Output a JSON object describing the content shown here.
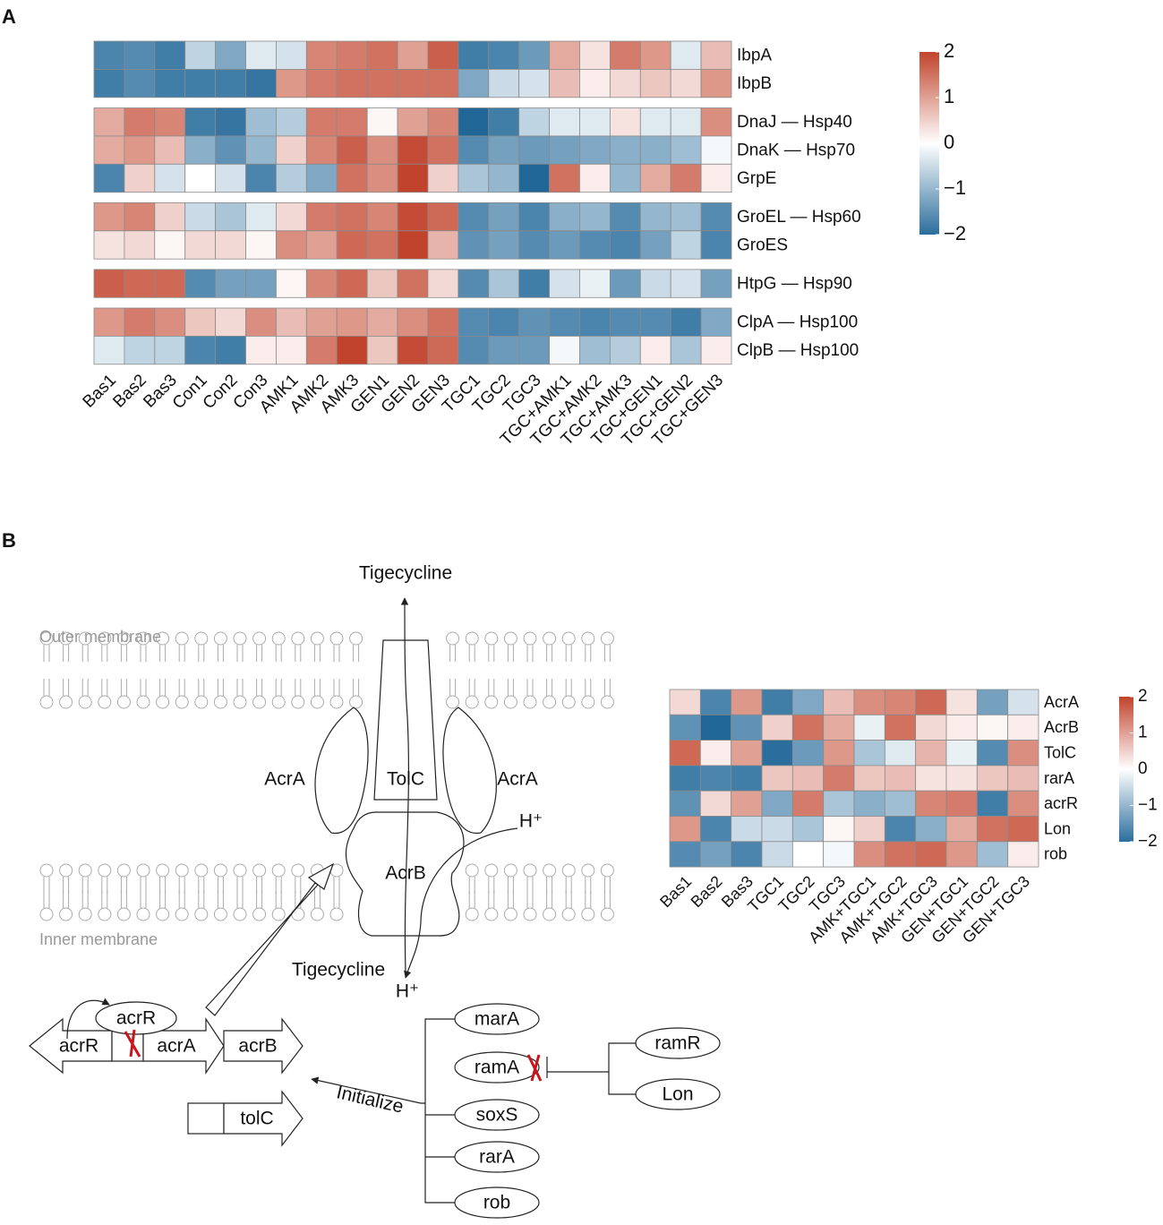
{
  "panel_labels": [
    "A",
    "B"
  ],
  "chart_data": [
    {
      "type": "heatmap",
      "columns": [
        "Bas1",
        "Bas2",
        "Bas3",
        "Con1",
        "Con2",
        "Con3",
        "AMK1",
        "AMK2",
        "AMK3",
        "GEN1",
        "GEN2",
        "GEN3",
        "TGC1",
        "TGC2",
        "TGC3",
        "TGC+AMK1",
        "TGC+AMK2",
        "TGC+AMK3",
        "TGC+GEN1",
        "TGC+GEN2",
        "TGC+GEN3"
      ],
      "row_groups": [
        {
          "rows": [
            "IbpA",
            "IbpB"
          ],
          "values": [
            [
              -1.7,
              -1.6,
              -1.8,
              -0.6,
              -1.2,
              -0.3,
              -0.4,
              1.3,
              1.4,
              1.5,
              1.0,
              1.7,
              -1.8,
              -1.7,
              -1.4,
              0.9,
              0.3,
              1.4,
              1.1,
              -0.3,
              0.7
            ],
            [
              -1.8,
              -1.6,
              -1.8,
              -1.8,
              -1.8,
              -1.9,
              1.1,
              1.4,
              1.5,
              1.5,
              1.5,
              1.5,
              -1.2,
              -0.5,
              -0.4,
              0.7,
              0.2,
              0.4,
              0.6,
              0.4,
              1.1
            ]
          ]
        },
        {
          "rows": [
            "DnaJ — Hsp40",
            "DnaK — Hsp70",
            "GrpE"
          ],
          "values": [
            [
              0.9,
              1.4,
              1.3,
              -1.8,
              -1.9,
              -0.9,
              -0.7,
              1.4,
              1.4,
              0.1,
              1.0,
              1.3,
              -2.1,
              -1.8,
              -0.6,
              -0.3,
              -0.3,
              0.3,
              -0.3,
              -0.3,
              1.2
            ],
            [
              0.9,
              1.1,
              0.7,
              -1.1,
              -1.5,
              -1.0,
              0.5,
              1.3,
              1.7,
              1.2,
              1.9,
              1.5,
              -1.6,
              -1.3,
              -1.4,
              -1.3,
              -1.2,
              -1.1,
              -1.1,
              -0.9,
              -0.1
            ],
            [
              -1.7,
              0.5,
              -0.4,
              0.0,
              -0.4,
              -1.7,
              -0.7,
              -1.2,
              1.5,
              1.2,
              2.0,
              0.5,
              -0.8,
              -1.0,
              -2.1,
              1.5,
              0.2,
              -1.0,
              0.9,
              1.4,
              0.2
            ]
          ]
        },
        {
          "rows": [
            "GroEL — Hsp60",
            "GroES"
          ],
          "values": [
            [
              1.1,
              1.3,
              0.5,
              -0.5,
              -0.8,
              -0.3,
              0.4,
              1.4,
              1.5,
              1.3,
              1.9,
              1.6,
              -1.6,
              -1.3,
              -1.7,
              -1.1,
              -1.0,
              -1.6,
              -1.0,
              -0.9,
              -1.6
            ],
            [
              0.3,
              0.4,
              0.1,
              0.4,
              0.4,
              0.1,
              1.2,
              1.0,
              1.6,
              1.5,
              2.0,
              0.8,
              -1.5,
              -1.3,
              -1.6,
              -1.4,
              -1.6,
              -1.7,
              -1.3,
              -0.6,
              -1.7
            ]
          ]
        },
        {
          "rows": [
            "HtpG — Hsp90"
          ],
          "values": [
            [
              1.7,
              1.6,
              1.6,
              -1.6,
              -1.3,
              -1.3,
              0.1,
              1.3,
              1.6,
              0.6,
              1.5,
              0.4,
              -1.6,
              -0.8,
              -1.8,
              -0.4,
              -0.2,
              -1.4,
              -0.5,
              -0.4,
              -1.3
            ]
          ]
        },
        {
          "rows": [
            "ClpA — Hsp100",
            "ClpB — Hsp100"
          ],
          "values": [
            [
              1.1,
              1.4,
              1.2,
              0.6,
              0.4,
              1.2,
              0.7,
              1.0,
              1.1,
              0.9,
              1.2,
              1.5,
              -1.6,
              -1.7,
              -1.5,
              -1.6,
              -1.7,
              -1.6,
              -1.6,
              -1.8,
              -1.2
            ],
            [
              -0.3,
              -0.6,
              -0.6,
              -1.7,
              -1.8,
              0.2,
              0.2,
              1.4,
              2.0,
              0.6,
              1.9,
              1.6,
              -1.6,
              -1.4,
              -1.4,
              -0.1,
              -0.9,
              -0.7,
              0.2,
              -0.8,
              0.2
            ]
          ]
        }
      ],
      "colorscale": [
        "#2b6e9d",
        "#ffffff",
        "#c1432b"
      ],
      "zlim": [
        -2,
        2
      ],
      "zticks": [
        2,
        1,
        0,
        {
          "value": -1,
          "label": "−1"
        },
        {
          "value": -2,
          "label": "−2"
        }
      ]
    },
    {
      "type": "heatmap",
      "columns": [
        "Bas1",
        "Bas2",
        "Bas3",
        "TGC1",
        "TGC2",
        "TGC3",
        "AMK+TGC1",
        "AMK+TGC2",
        "AMK+TGC3",
        "GEN+TGC1",
        "GEN+TGC2",
        "GEN+TGC3"
      ],
      "row_groups": [
        {
          "rows": [
            "AcrA",
            "AcrB",
            "TolC",
            "rarA",
            "acrR",
            "Lon",
            "rob"
          ],
          "values": [
            [
              0.4,
              -1.7,
              1.1,
              -1.8,
              -1.2,
              0.7,
              1.2,
              1.3,
              1.6,
              0.3,
              -1.3,
              -0.4
            ],
            [
              -1.5,
              -2.1,
              -1.5,
              0.5,
              1.5,
              0.9,
              -0.2,
              1.5,
              0.4,
              0.2,
              0.1,
              0.2
            ],
            [
              1.6,
              0.2,
              1.0,
              -2.0,
              -1.4,
              1.1,
              -0.8,
              -0.3,
              0.8,
              -0.2,
              -1.6,
              1.2
            ],
            [
              -1.8,
              -1.7,
              -1.8,
              0.6,
              0.7,
              1.4,
              0.6,
              0.7,
              0.3,
              0.3,
              0.6,
              0.7
            ],
            [
              -1.5,
              0.4,
              1.0,
              -1.2,
              1.4,
              -0.8,
              -1.1,
              -0.9,
              1.3,
              1.4,
              -1.8,
              1.2
            ],
            [
              1.1,
              -1.7,
              -0.5,
              -0.5,
              -0.8,
              0.1,
              0.5,
              -1.7,
              -1.1,
              0.9,
              1.5,
              1.6
            ],
            [
              -1.6,
              -1.3,
              -1.7,
              -0.5,
              0.0,
              -0.1,
              1.2,
              1.5,
              1.6,
              1.1,
              -0.9,
              0.2
            ]
          ]
        }
      ],
      "colorscale": [
        "#2b6e9d",
        "#ffffff",
        "#c1432b"
      ],
      "zlim": [
        -2,
        2
      ],
      "zticks": [
        2,
        1,
        0,
        {
          "value": -1,
          "label": "−1"
        },
        {
          "value": -2,
          "label": "−2"
        }
      ]
    }
  ],
  "diagram": {
    "drug_exit": "Tigecycline",
    "drug_entry": "Tigecycline",
    "membranes": [
      "Outer membrane",
      "Inner membrane"
    ],
    "proteins": [
      "AcrA",
      "AcrA",
      "TolC",
      "AcrB"
    ],
    "protons": [
      "H⁺",
      "H⁺"
    ],
    "repressor": "acrR",
    "genes": [
      "acrR",
      "acrA",
      "acrB",
      "tolC"
    ],
    "action": "Initialize",
    "regulators": [
      "marA",
      "ramA",
      "soxS",
      "rarA",
      "rob"
    ],
    "ramA_regulators": [
      "ramR",
      "Lon"
    ]
  }
}
